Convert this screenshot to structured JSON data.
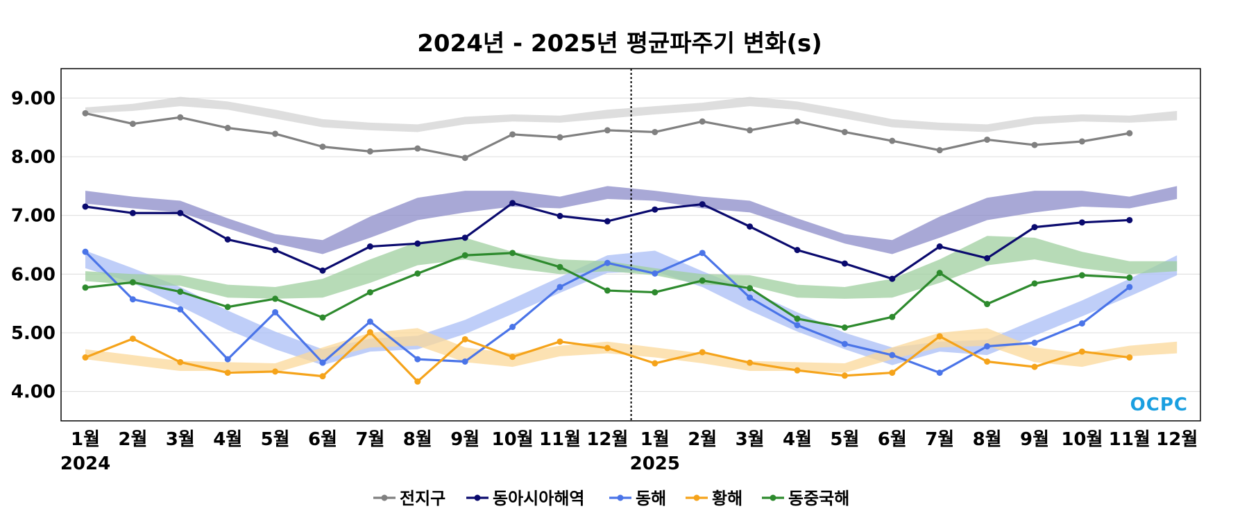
{
  "chart_data": {
    "type": "line",
    "title": "2024년 - 2025년 평균파주기 변화(s)",
    "xlabel": "",
    "ylabel": "",
    "ylim": [
      3.5,
      9.5
    ],
    "yticks": [
      "9.00",
      "8.00",
      "7.00",
      "6.00",
      "5.00",
      "4.00"
    ],
    "ytick_values": [
      9,
      8,
      7,
      6,
      5,
      4
    ],
    "categories": [
      "1월",
      "2월",
      "3월",
      "4월",
      "5월",
      "6월",
      "7월",
      "8월",
      "9월",
      "10월",
      "11월",
      "12월",
      "1월",
      "2월",
      "3월",
      "4월",
      "5월",
      "6월",
      "7월",
      "8월",
      "9월",
      "10월",
      "11월",
      "12월"
    ],
    "year_labels": [
      {
        "index": 0,
        "label": "2024"
      },
      {
        "index": 12,
        "label": "2025"
      }
    ],
    "year_divider_between": [
      11,
      12
    ],
    "grid": "horizontal",
    "legend_position": "bottom-center",
    "series": [
      {
        "name": "전지구",
        "color": "#808080",
        "band_color": "#d3d3d3",
        "values": [
          8.74,
          8.56,
          8.67,
          8.49,
          8.39,
          8.17,
          8.09,
          8.14,
          7.98,
          8.38,
          8.33,
          8.45,
          8.42,
          8.6,
          8.45,
          8.6,
          8.42,
          8.27,
          8.11,
          8.29,
          8.2,
          8.26,
          8.4,
          null
        ],
        "band_lower": [
          8.74,
          8.78,
          8.86,
          8.8,
          8.65,
          8.5,
          8.45,
          8.42,
          8.55,
          8.6,
          8.58,
          8.65,
          8.72,
          8.78,
          8.86,
          8.8,
          8.65,
          8.5,
          8.45,
          8.42,
          8.55,
          8.6,
          8.58,
          8.62
        ],
        "band_upper": [
          8.84,
          8.9,
          9.02,
          8.94,
          8.8,
          8.64,
          8.58,
          8.55,
          8.68,
          8.72,
          8.7,
          8.8,
          8.86,
          8.92,
          9.02,
          8.94,
          8.8,
          8.64,
          8.58,
          8.55,
          8.68,
          8.72,
          8.7,
          8.78
        ]
      },
      {
        "name": "동아시아해역",
        "color": "#0a0a6e",
        "band_color": "#8b8bc8",
        "values": [
          7.15,
          7.04,
          7.04,
          6.59,
          6.41,
          6.06,
          6.47,
          6.52,
          6.62,
          7.21,
          6.99,
          6.9,
          7.1,
          7.19,
          6.81,
          6.41,
          6.18,
          5.92,
          6.47,
          6.27,
          6.8,
          6.88,
          6.92,
          null
        ],
        "band_lower": [
          7.2,
          7.12,
          7.05,
          6.78,
          6.52,
          6.34,
          6.62,
          6.92,
          7.05,
          7.15,
          7.12,
          7.28,
          7.25,
          7.12,
          7.05,
          6.78,
          6.52,
          6.34,
          6.62,
          6.92,
          7.05,
          7.15,
          7.12,
          7.28
        ],
        "band_upper": [
          7.42,
          7.32,
          7.25,
          6.95,
          6.68,
          6.58,
          6.98,
          7.3,
          7.42,
          7.42,
          7.32,
          7.5,
          7.42,
          7.32,
          7.25,
          6.95,
          6.68,
          6.58,
          6.98,
          7.3,
          7.42,
          7.42,
          7.32,
          7.5
        ]
      },
      {
        "name": "동해",
        "color": "#4a74e8",
        "band_color": "#a9bdf5",
        "values": [
          6.38,
          5.57,
          5.4,
          4.55,
          5.35,
          4.49,
          5.19,
          4.55,
          4.51,
          5.1,
          5.78,
          6.19,
          6.01,
          6.36,
          5.6,
          5.13,
          4.81,
          4.62,
          4.32,
          4.77,
          4.83,
          5.16,
          5.78,
          null
        ],
        "band_lower": [
          6.1,
          5.85,
          5.45,
          5.05,
          4.72,
          4.45,
          4.68,
          4.72,
          4.98,
          5.32,
          5.68,
          6.02,
          6.05,
          5.78,
          5.38,
          5.02,
          4.72,
          4.45,
          4.68,
          4.62,
          4.95,
          5.28,
          5.62,
          5.98
        ],
        "band_upper": [
          6.4,
          6.1,
          5.78,
          5.38,
          5.02,
          4.72,
          4.9,
          4.95,
          5.22,
          5.58,
          5.95,
          6.32,
          6.4,
          6.05,
          5.72,
          5.35,
          5.0,
          4.75,
          4.85,
          4.88,
          5.22,
          5.55,
          5.92,
          6.32
        ]
      },
      {
        "name": "황해",
        "color": "#f5a31a",
        "band_color": "#fbd89a",
        "values": [
          4.58,
          4.9,
          4.5,
          4.32,
          4.34,
          4.26,
          5.01,
          4.17,
          4.89,
          4.59,
          4.85,
          4.74,
          4.48,
          4.67,
          4.49,
          4.36,
          4.27,
          4.32,
          4.94,
          4.51,
          4.42,
          4.68,
          4.58,
          null
        ],
        "band_lower": [
          4.55,
          4.45,
          4.35,
          4.35,
          4.32,
          4.55,
          4.75,
          4.78,
          4.5,
          4.42,
          4.6,
          4.65,
          4.58,
          4.48,
          4.35,
          4.35,
          4.32,
          4.55,
          4.75,
          4.78,
          4.5,
          4.42,
          4.6,
          4.65
        ],
        "band_upper": [
          4.72,
          4.62,
          4.52,
          4.5,
          4.48,
          4.75,
          5.0,
          5.08,
          4.75,
          4.65,
          4.78,
          4.85,
          4.75,
          4.65,
          4.52,
          4.5,
          4.48,
          4.75,
          5.0,
          5.08,
          4.75,
          4.65,
          4.78,
          4.85
        ]
      },
      {
        "name": "동중국해",
        "color": "#2d8a2d",
        "band_color": "#9fcf9f",
        "values": [
          5.77,
          5.86,
          5.7,
          5.44,
          5.58,
          5.26,
          5.69,
          6.01,
          6.32,
          6.36,
          6.12,
          5.72,
          5.69,
          5.89,
          5.76,
          5.24,
          5.09,
          5.27,
          6.02,
          5.49,
          5.84,
          5.98,
          5.94,
          null
        ],
        "band_lower": [
          5.88,
          5.82,
          5.8,
          5.6,
          5.58,
          5.6,
          5.85,
          6.15,
          6.25,
          6.1,
          6.0,
          6.05,
          5.98,
          5.82,
          5.8,
          5.6,
          5.58,
          5.6,
          5.85,
          6.15,
          6.25,
          6.1,
          6.0,
          6.05
        ],
        "band_upper": [
          6.05,
          6.0,
          5.98,
          5.82,
          5.78,
          5.92,
          6.25,
          6.55,
          6.62,
          6.38,
          6.25,
          6.22,
          6.1,
          6.0,
          5.98,
          5.82,
          5.78,
          5.92,
          6.25,
          6.65,
          6.62,
          6.38,
          6.22,
          6.22
        ]
      }
    ],
    "logo": "OCPC",
    "logo_colors": [
      "#1a9fe0",
      "#0a4a9a"
    ]
  }
}
